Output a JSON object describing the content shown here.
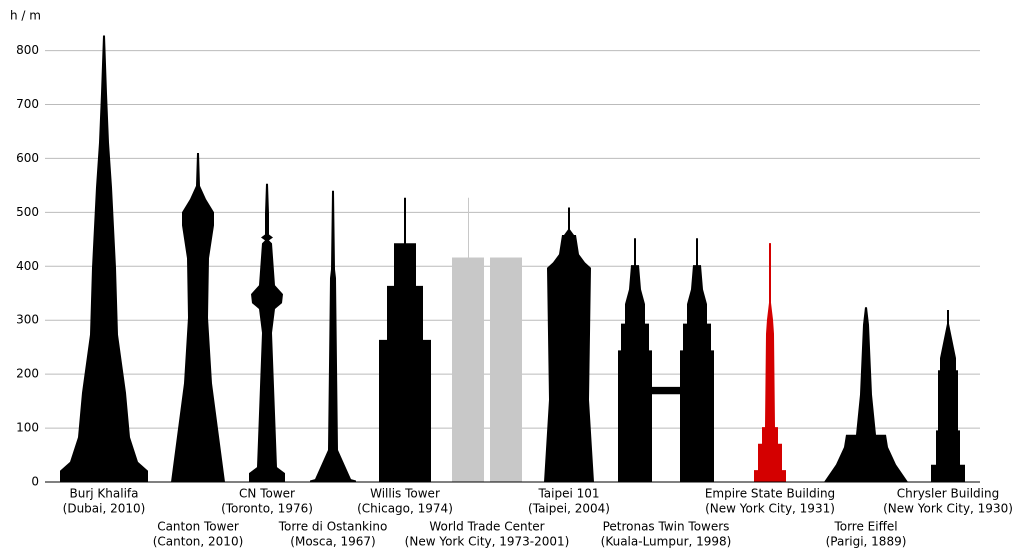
{
  "chart_data": {
    "type": "silhouette",
    "y_label": "h / m",
    "categories": [
      "Burj Khalifa",
      "Canton Tower",
      "CN Tower",
      "Torre di Ostankino",
      "Willis Tower",
      "World Trade Center",
      "Taipei 101",
      "Petronas Twin Towers",
      "Empire State Building",
      "Torre Eiffel",
      "Chrysler Building"
    ],
    "details": [
      "(Dubai, 2010)",
      "(Canton, 2010)",
      "(Toronto, 1976)",
      "(Mosca, 1967)",
      "(Chicago, 1974)",
      "(New York City, 1973-2001)",
      "(Taipei, 2004)",
      "(Kuala-Lumpur, 1998)",
      "(New York City, 1931)",
      "(Parigi, 1889)",
      "(New York City, 1930)"
    ],
    "values": [
      828,
      610,
      553,
      540,
      527,
      527,
      509,
      452,
      443,
      324,
      319
    ],
    "colors": [
      "#000000",
      "#000000",
      "#000000",
      "#000000",
      "#000000",
      "#c8c8c8",
      "#000000",
      "#000000",
      "#d40000",
      "#000000",
      "#000000"
    ],
    "ylim": [
      0,
      840
    ],
    "yticks": [
      0,
      100,
      200,
      300,
      400,
      500,
      600,
      700,
      800
    ],
    "grid": true
  }
}
